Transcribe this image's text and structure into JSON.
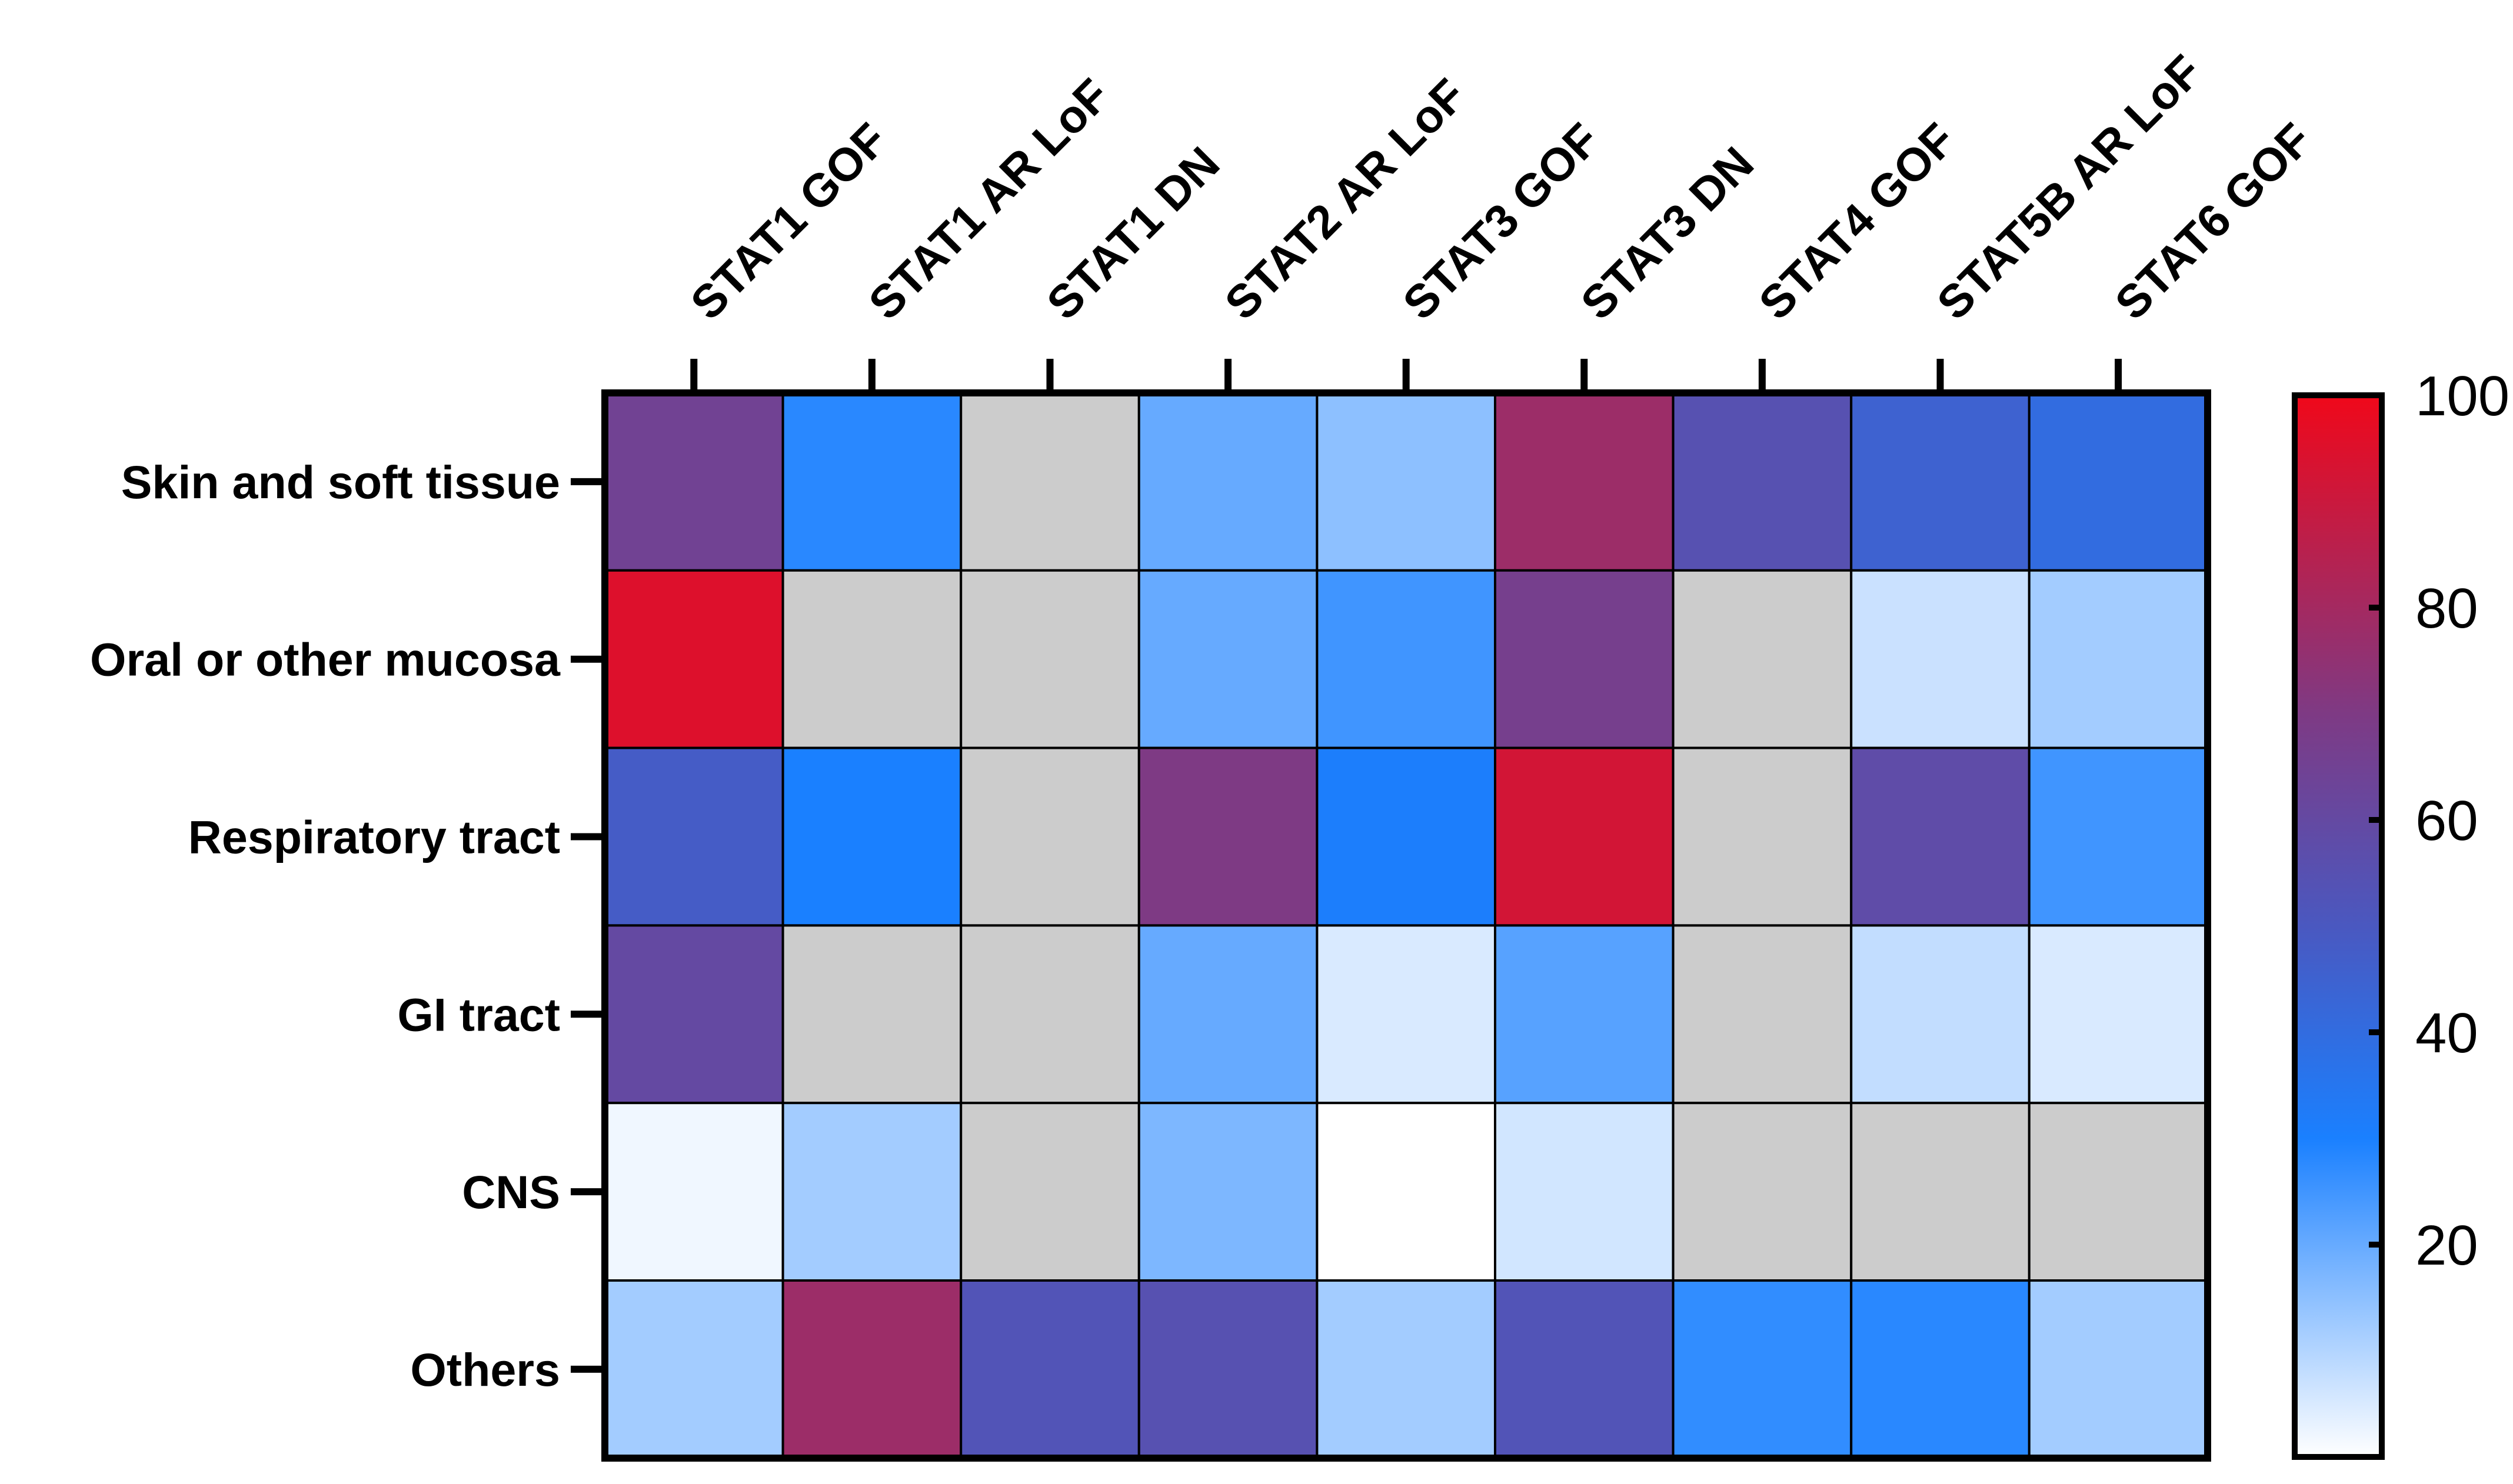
{
  "chart_data": {
    "type": "heatmap",
    "title": "",
    "xlabel": "",
    "ylabel": "",
    "columns": [
      "STAT1 GOF",
      "STAT1 AR LoF",
      "STAT1 DN",
      "STAT2 AR LoF",
      "STAT3 GOF",
      "STAT3 DN",
      "STAT4 GOF",
      "STAT5B AR LoF",
      "STAT6 GOF"
    ],
    "rows": [
      "Skin and soft tissue",
      "Oral or other mucosa",
      "Respiratory tract",
      "GI tract",
      "CNS",
      "Others"
    ],
    "values": [
      [
        65,
        28,
        null,
        20,
        15,
        78,
        55,
        45,
        40
      ],
      [
        95,
        null,
        null,
        20,
        25,
        67,
        null,
        7,
        12
      ],
      [
        48,
        30,
        null,
        70,
        31,
        92,
        null,
        58,
        25
      ],
      [
        60,
        null,
        null,
        20,
        5,
        22,
        null,
        8,
        5
      ],
      [
        2,
        12,
        null,
        17,
        0,
        6,
        null,
        null,
        null
      ],
      [
        12,
        78,
        53,
        55,
        12,
        53,
        27,
        28,
        12
      ]
    ],
    "missing_color": "#cccccc",
    "colorbar": {
      "min": 0,
      "max": 100,
      "ticks": [
        20,
        40,
        60,
        80,
        100
      ],
      "tick_labels": [
        "20",
        "40",
        "60",
        "80",
        "100"
      ],
      "stops": [
        {
          "value": 0,
          "color": "#ffffff"
        },
        {
          "value": 30,
          "color": "#1a80ff"
        },
        {
          "value": 50,
          "color": "#4a58c0"
        },
        {
          "value": 70,
          "color": "#7e3a84"
        },
        {
          "value": 100,
          "color": "#f0081a"
        }
      ]
    }
  }
}
